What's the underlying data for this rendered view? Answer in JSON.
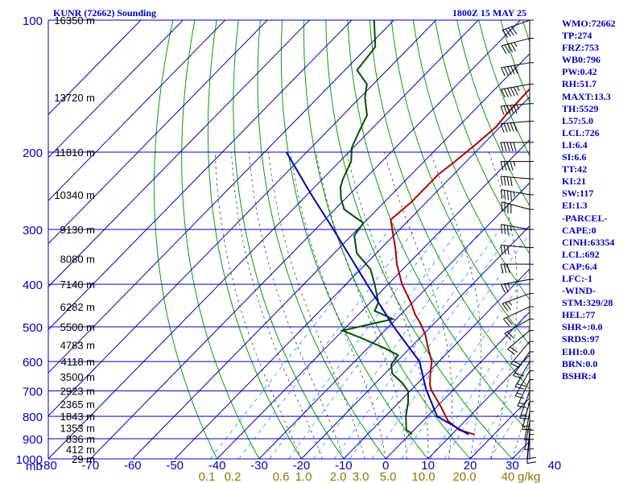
{
  "chart_data": {
    "type": "line",
    "title": "KUNR (72662) Sounding",
    "datetime": "1800Z 15 MAY 25",
    "y_unit": "mb",
    "p_ticks": [
      100,
      200,
      300,
      400,
      500,
      600,
      700,
      800,
      900,
      1000
    ],
    "t_ticks": [
      -80,
      -70,
      -60,
      -50,
      -40,
      -30,
      -20,
      -10,
      0,
      10,
      20,
      30,
      40
    ],
    "t_tick_labels": [
      "-80",
      "-70",
      "-60",
      "-50",
      "-40",
      "-30",
      "-20",
      "-10",
      "0",
      "10",
      "20",
      "30",
      "40"
    ],
    "mixing_ratio_labels": [
      "0.1",
      "0.2",
      "0.6",
      "1.0",
      "2.0",
      "3.0",
      "5.0",
      "10.0",
      "20.0",
      "40",
      "g/kg"
    ],
    "height_labels": [
      {
        "p": 100,
        "text": "16350 m"
      },
      {
        "p": 150,
        "text": "13720 m"
      },
      {
        "p": 200,
        "text": "11810 m"
      },
      {
        "p": 250,
        "text": "10340 m"
      },
      {
        "p": 300,
        "text": "9130 m"
      },
      {
        "p": 350,
        "text": "8080 m"
      },
      {
        "p": 400,
        "text": "7140 m"
      },
      {
        "p": 450,
        "text": "6282 m"
      },
      {
        "p": 500,
        "text": "5500 m"
      },
      {
        "p": 550,
        "text": "4783 m"
      },
      {
        "p": 600,
        "text": "4118 m"
      },
      {
        "p": 650,
        "text": "3500 m"
      },
      {
        "p": 700,
        "text": "2923 m"
      },
      {
        "p": 750,
        "text": "2365 m"
      },
      {
        "p": 800,
        "text": "1843 m"
      },
      {
        "p": 850,
        "text": "1353 m"
      },
      {
        "p": 900,
        "text": "836 m"
      },
      {
        "p": 950,
        "text": "412 m"
      },
      {
        "p": 1000,
        "text": "29 m"
      }
    ],
    "series": [
      {
        "color": "#b00000",
        "points": [
          [
            880,
            15.4
          ],
          [
            872,
            13.6
          ],
          [
            860,
            10.8
          ],
          [
            820,
            6.0
          ],
          [
            760,
            0.9
          ],
          [
            700,
            -4.9
          ],
          [
            680,
            -6.6
          ],
          [
            640,
            -9.2
          ],
          [
            600,
            -11.7
          ],
          [
            560,
            -15.6
          ],
          [
            520,
            -19.6
          ],
          [
            490,
            -23.4
          ],
          [
            470,
            -26.4
          ],
          [
            440,
            -30.4
          ],
          [
            400,
            -36.7
          ],
          [
            360,
            -42.6
          ],
          [
            330,
            -46.8
          ],
          [
            305,
            -50.9
          ],
          [
            285,
            -54.4
          ],
          [
            260,
            -53.6
          ],
          [
            240,
            -53.6
          ],
          [
            225,
            -53.6
          ],
          [
            210,
            -52.7
          ],
          [
            190,
            -51.6
          ],
          [
            175,
            -51.0
          ],
          [
            165,
            -51.4
          ],
          [
            150,
            -51.7
          ],
          [
            135,
            -51.9
          ],
          [
            125,
            -53.5
          ],
          [
            110,
            -53.3
          ],
          [
            100,
            -55.6
          ]
        ]
      },
      {
        "color": "#005000",
        "points": [
          [
            880,
            0.5
          ],
          [
            872,
            -0.1
          ],
          [
            860,
            -1.8
          ],
          [
            800,
            -5.1
          ],
          [
            740,
            -8.0
          ],
          [
            700,
            -10.5
          ],
          [
            670,
            -13.9
          ],
          [
            640,
            -18.2
          ],
          [
            610,
            -20.6
          ],
          [
            580,
            -21.2
          ],
          [
            560,
            -25.8
          ],
          [
            530,
            -34.0
          ],
          [
            510,
            -40.1
          ],
          [
            480,
            -30.8
          ],
          [
            460,
            -37.0
          ],
          [
            440,
            -38.1
          ],
          [
            400,
            -43.2
          ],
          [
            370,
            -47.6
          ],
          [
            340,
            -54.6
          ],
          [
            310,
            -59.3
          ],
          [
            290,
            -60.1
          ],
          [
            270,
            -67.8
          ],
          [
            255,
            -71.1
          ],
          [
            240,
            -73.9
          ],
          [
            230,
            -75.2
          ],
          [
            210,
            -77.3
          ],
          [
            195,
            -80.4
          ],
          [
            180,
            -82.3
          ],
          [
            165,
            -84.2
          ],
          [
            150,
            -88.9
          ],
          [
            140,
            -91.5
          ],
          [
            130,
            -97.1
          ],
          [
            115,
            -98.2
          ],
          [
            100,
            -104.7
          ]
        ]
      },
      {
        "color": "#0000b0",
        "points": [
          [
            880,
            14.0
          ],
          [
            800,
            2.3
          ],
          [
            692,
            -6.8
          ],
          [
            600,
            -14.6
          ],
          [
            500,
            -28.8
          ],
          [
            400,
            -45.0
          ],
          [
            300,
            -65.7
          ],
          [
            250,
            -79.0
          ],
          [
            200,
            -94.8
          ]
        ]
      }
    ],
    "wind_barbs": [
      {
        "p": 100,
        "dir": 290,
        "spd": 40
      },
      {
        "p": 110,
        "dir": 285,
        "spd": 45
      },
      {
        "p": 125,
        "dir": 280,
        "spd": 50
      },
      {
        "p": 140,
        "dir": 280,
        "spd": 55
      },
      {
        "p": 155,
        "dir": 275,
        "spd": 55
      },
      {
        "p": 170,
        "dir": 275,
        "spd": 50
      },
      {
        "p": 190,
        "dir": 270,
        "spd": 50
      },
      {
        "p": 210,
        "dir": 270,
        "spd": 45
      },
      {
        "p": 230,
        "dir": 265,
        "spd": 40
      },
      {
        "p": 250,
        "dir": 260,
        "spd": 45
      },
      {
        "p": 270,
        "dir": 255,
        "spd": 40
      },
      {
        "p": 300,
        "dir": 260,
        "spd": 35
      },
      {
        "p": 330,
        "dir": 265,
        "spd": 30
      },
      {
        "p": 360,
        "dir": 270,
        "spd": 30
      },
      {
        "p": 390,
        "dir": 280,
        "spd": 25
      },
      {
        "p": 420,
        "dir": 290,
        "spd": 25
      },
      {
        "p": 450,
        "dir": 295,
        "spd": 20
      },
      {
        "p": 480,
        "dir": 300,
        "spd": 20
      },
      {
        "p": 510,
        "dir": 310,
        "spd": 20
      },
      {
        "p": 540,
        "dir": 320,
        "spd": 20
      },
      {
        "p": 570,
        "dir": 325,
        "spd": 20
      },
      {
        "p": 600,
        "dir": 330,
        "spd": 20
      },
      {
        "p": 630,
        "dir": 330,
        "spd": 15
      },
      {
        "p": 660,
        "dir": 335,
        "spd": 15
      },
      {
        "p": 700,
        "dir": 340,
        "spd": 15
      },
      {
        "p": 740,
        "dir": 345,
        "spd": 15
      },
      {
        "p": 780,
        "dir": 350,
        "spd": 10
      },
      {
        "p": 820,
        "dir": 350,
        "spd": 10
      },
      {
        "p": 860,
        "dir": 355,
        "spd": 10
      },
      {
        "p": 880,
        "dir": 355,
        "spd": 10
      }
    ],
    "colors": {
      "frame": "#0000c0",
      "isobar": "#0000c0",
      "isotherm": "#0000c0",
      "dry_adiabat": "#00a000",
      "moist_adiabat": "#000000",
      "mixing_ratio": "#1e90ff"
    }
  },
  "indices": [
    "WMO:72662",
    "TP:274",
    "FRZ:753",
    "WB0:796",
    "PW:0.42",
    "RH:51.7",
    "MAXT:13.3",
    "TH:5529",
    "L57:5.0",
    "LCL:726",
    "LI:6.4",
    "SI:6.6",
    "TT:42",
    "KI:21",
    "SW:117",
    "EI:1.3",
    "-PARCEL-",
    "CAPE:0",
    "CINH:63354",
    "LCL:692",
    "CAP:6.4",
    "LFC:-1",
    "-WIND-",
    "STM:329/28",
    "HEL:77",
    "SHR+:0.0",
    "SRDS:97",
    "EHI:0.0",
    "BRN:0.0",
    "BSHR:4"
  ]
}
